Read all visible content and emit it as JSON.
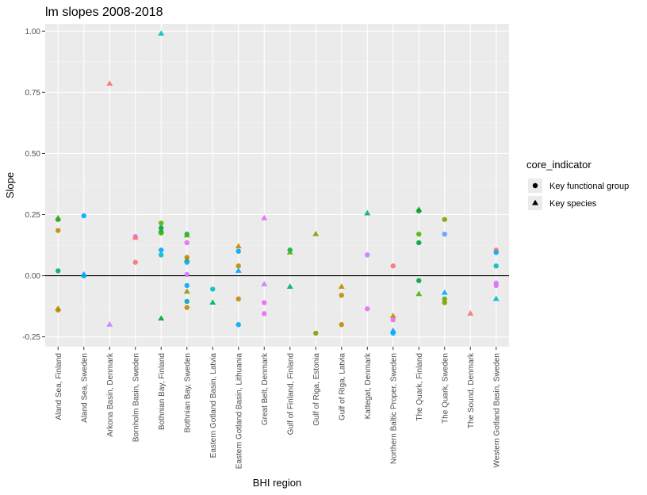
{
  "chart_data": {
    "type": "scatter",
    "title": "lm slopes 2008-2018",
    "xlabel": "BHI region",
    "ylabel": "Slope",
    "ylim": [
      -0.29,
      1.03
    ],
    "yticks": [
      -0.25,
      0.0,
      0.25,
      0.5,
      0.75,
      1.0
    ],
    "ytick_labels": [
      "-0.25",
      "0.00",
      "0.25",
      "0.50",
      "0.75",
      "1.00"
    ],
    "hline": 0,
    "grid": true,
    "categories": [
      "Aland Sea, Finland",
      "Aland Sea, Sweden",
      "Arkona Basin, Denmark",
      "Bornholm Basin, Sweden",
      "Bothnian Bay, Finland",
      "Bothnian Bay, Sweden",
      "Eastern Gotland Basin, Latvia",
      "Eastern Gotland Basin, Lithuania",
      "Great Belt, Denmark",
      "Gulf of Finland, Finland",
      "Gulf of Riga, Estonia",
      "Gulf of Riga, Latvia",
      "Kattegat, Denmark",
      "Northern Baltic Proper, Sweden",
      "The Quark, Finland",
      "The Quark, Sweden",
      "The Sound, Denmark",
      "Western Gotland Basin, Sweden"
    ],
    "legend": {
      "title": "core_indicator",
      "position": "right",
      "entries": [
        {
          "label": "Key functional group",
          "shape": "circle"
        },
        {
          "label": "Key species",
          "shape": "triangle"
        }
      ]
    },
    "points": [
      {
        "x": "Aland Sea, Finland",
        "y": 0.23,
        "shape": "circle",
        "color": "#00a33a"
      },
      {
        "x": "Aland Sea, Finland",
        "y": 0.235,
        "shape": "triangle",
        "color": "#3fae00"
      },
      {
        "x": "Aland Sea, Finland",
        "y": 0.185,
        "shape": "circle",
        "color": "#c08b00"
      },
      {
        "x": "Aland Sea, Finland",
        "y": 0.02,
        "shape": "circle",
        "color": "#00b060"
      },
      {
        "x": "Aland Sea, Finland",
        "y": -0.135,
        "shape": "triangle",
        "color": "#8a9a00"
      },
      {
        "x": "Aland Sea, Finland",
        "y": -0.14,
        "shape": "circle",
        "color": "#c08b00"
      },
      {
        "x": "Aland Sea, Sweden",
        "y": 0.245,
        "shape": "circle",
        "color": "#00a9ff"
      },
      {
        "x": "Aland Sea, Sweden",
        "y": 0.0,
        "shape": "circle",
        "color": "#00a5c7"
      },
      {
        "x": "Aland Sea, Sweden",
        "y": 0.005,
        "shape": "triangle",
        "color": "#00a9ff"
      },
      {
        "x": "Arkona Basin, Denmark",
        "y": 0.785,
        "shape": "triangle",
        "color": "#f8766d"
      },
      {
        "x": "Arkona Basin, Denmark",
        "y": -0.2,
        "shape": "triangle",
        "color": "#c77cff"
      },
      {
        "x": "Bornholm Basin, Sweden",
        "y": 0.16,
        "shape": "circle",
        "color": "#e76bf3"
      },
      {
        "x": "Bornholm Basin, Sweden",
        "y": 0.155,
        "shape": "triangle",
        "color": "#f8766d"
      },
      {
        "x": "Bornholm Basin, Sweden",
        "y": 0.055,
        "shape": "circle",
        "color": "#f8766d"
      },
      {
        "x": "Bothnian Bay, Finland",
        "y": 0.99,
        "shape": "triangle",
        "color": "#00bfc4"
      },
      {
        "x": "Bothnian Bay, Finland",
        "y": 0.215,
        "shape": "circle",
        "color": "#53b400"
      },
      {
        "x": "Bothnian Bay, Finland",
        "y": 0.195,
        "shape": "circle",
        "color": "#00a33a"
      },
      {
        "x": "Bothnian Bay, Finland",
        "y": 0.185,
        "shape": "triangle",
        "color": "#00b060"
      },
      {
        "x": "Bothnian Bay, Finland",
        "y": 0.175,
        "shape": "circle",
        "color": "#3fae00"
      },
      {
        "x": "Bothnian Bay, Finland",
        "y": 0.105,
        "shape": "circle",
        "color": "#00a9ff"
      },
      {
        "x": "Bothnian Bay, Finland",
        "y": 0.085,
        "shape": "circle",
        "color": "#00bfc4"
      },
      {
        "x": "Bothnian Bay, Finland",
        "y": -0.175,
        "shape": "triangle",
        "color": "#00a33a"
      },
      {
        "x": "Bothnian Bay, Sweden",
        "y": 0.17,
        "shape": "circle",
        "color": "#00b060"
      },
      {
        "x": "Bothnian Bay, Sweden",
        "y": 0.165,
        "shape": "triangle",
        "color": "#53b400"
      },
      {
        "x": "Bothnian Bay, Sweden",
        "y": 0.135,
        "shape": "circle",
        "color": "#e76bf3"
      },
      {
        "x": "Bothnian Bay, Sweden",
        "y": 0.075,
        "shape": "circle",
        "color": "#c08b00"
      },
      {
        "x": "Bothnian Bay, Sweden",
        "y": 0.065,
        "shape": "triangle",
        "color": "#8a9a00"
      },
      {
        "x": "Bothnian Bay, Sweden",
        "y": 0.055,
        "shape": "circle",
        "color": "#00a9ff"
      },
      {
        "x": "Bothnian Bay, Sweden",
        "y": 0.005,
        "shape": "circle",
        "color": "#c77cff"
      },
      {
        "x": "Bothnian Bay, Sweden",
        "y": -0.04,
        "shape": "circle",
        "color": "#00a9ff"
      },
      {
        "x": "Bothnian Bay, Sweden",
        "y": -0.065,
        "shape": "triangle",
        "color": "#8a9a00"
      },
      {
        "x": "Bothnian Bay, Sweden",
        "y": -0.105,
        "shape": "circle",
        "color": "#00a5c7"
      },
      {
        "x": "Bothnian Bay, Sweden",
        "y": -0.13,
        "shape": "circle",
        "color": "#c08b00"
      },
      {
        "x": "Eastern Gotland Basin, Latvia",
        "y": -0.055,
        "shape": "circle",
        "color": "#00bfc4"
      },
      {
        "x": "Eastern Gotland Basin, Latvia",
        "y": -0.11,
        "shape": "triangle",
        "color": "#00b060"
      },
      {
        "x": "Eastern Gotland Basin, Lithuania",
        "y": 0.12,
        "shape": "triangle",
        "color": "#c08b00"
      },
      {
        "x": "Eastern Gotland Basin, Lithuania",
        "y": 0.1,
        "shape": "circle",
        "color": "#00a9ff"
      },
      {
        "x": "Eastern Gotland Basin, Lithuania",
        "y": 0.04,
        "shape": "circle",
        "color": "#c08b00"
      },
      {
        "x": "Eastern Gotland Basin, Lithuania",
        "y": 0.02,
        "shape": "triangle",
        "color": "#00a9ff"
      },
      {
        "x": "Eastern Gotland Basin, Lithuania",
        "y": -0.095,
        "shape": "circle",
        "color": "#c08b00"
      },
      {
        "x": "Eastern Gotland Basin, Lithuania",
        "y": -0.2,
        "shape": "circle",
        "color": "#00a9ff"
      },
      {
        "x": "Great Belt, Denmark",
        "y": 0.235,
        "shape": "triangle",
        "color": "#e76bf3"
      },
      {
        "x": "Great Belt, Denmark",
        "y": -0.035,
        "shape": "triangle",
        "color": "#c77cff"
      },
      {
        "x": "Great Belt, Denmark",
        "y": -0.11,
        "shape": "circle",
        "color": "#e76bf3"
      },
      {
        "x": "Great Belt, Denmark",
        "y": -0.155,
        "shape": "circle",
        "color": "#e76bf3"
      },
      {
        "x": "Gulf of Finland, Finland",
        "y": 0.105,
        "shape": "circle",
        "color": "#00b060"
      },
      {
        "x": "Gulf of Finland, Finland",
        "y": 0.095,
        "shape": "triangle",
        "color": "#53b400"
      },
      {
        "x": "Gulf of Finland, Finland",
        "y": -0.045,
        "shape": "triangle",
        "color": "#00b060"
      },
      {
        "x": "Gulf of Riga, Estonia",
        "y": 0.17,
        "shape": "triangle",
        "color": "#8a9a00"
      },
      {
        "x": "Gulf of Riga, Estonia",
        "y": -0.235,
        "shape": "circle",
        "color": "#8a9a00"
      },
      {
        "x": "Gulf of Riga, Latvia",
        "y": -0.045,
        "shape": "triangle",
        "color": "#c08b00"
      },
      {
        "x": "Gulf of Riga, Latvia",
        "y": -0.08,
        "shape": "circle",
        "color": "#c08b00"
      },
      {
        "x": "Gulf of Riga, Latvia",
        "y": -0.2,
        "shape": "circle",
        "color": "#c08b00"
      },
      {
        "x": "Kattegat, Denmark",
        "y": 0.255,
        "shape": "triangle",
        "color": "#00b060"
      },
      {
        "x": "Kattegat, Denmark",
        "y": 0.085,
        "shape": "circle",
        "color": "#c77cff"
      },
      {
        "x": "Kattegat, Denmark",
        "y": -0.135,
        "shape": "circle",
        "color": "#e76bf3"
      },
      {
        "x": "Northern Baltic Proper, Sweden",
        "y": 0.04,
        "shape": "circle",
        "color": "#f8766d"
      },
      {
        "x": "Northern Baltic Proper, Sweden",
        "y": -0.165,
        "shape": "triangle",
        "color": "#c08b00"
      },
      {
        "x": "Northern Baltic Proper, Sweden",
        "y": -0.18,
        "shape": "circle",
        "color": "#e76bf3"
      },
      {
        "x": "Northern Baltic Proper, Sweden",
        "y": -0.225,
        "shape": "triangle",
        "color": "#00a9ff"
      },
      {
        "x": "Northern Baltic Proper, Sweden",
        "y": -0.235,
        "shape": "circle",
        "color": "#00a9ff"
      },
      {
        "x": "The Quark, Finland",
        "y": 0.27,
        "shape": "triangle",
        "color": "#3fae00"
      },
      {
        "x": "The Quark, Finland",
        "y": 0.265,
        "shape": "circle",
        "color": "#00a33a"
      },
      {
        "x": "The Quark, Finland",
        "y": 0.17,
        "shape": "circle",
        "color": "#53b400"
      },
      {
        "x": "The Quark, Finland",
        "y": 0.135,
        "shape": "circle",
        "color": "#00a33a"
      },
      {
        "x": "The Quark, Finland",
        "y": -0.02,
        "shape": "circle",
        "color": "#00a33a"
      },
      {
        "x": "The Quark, Finland",
        "y": -0.075,
        "shape": "triangle",
        "color": "#53b400"
      },
      {
        "x": "The Quark, Sweden",
        "y": 0.23,
        "shape": "circle",
        "color": "#8a9a00"
      },
      {
        "x": "The Quark, Sweden",
        "y": 0.17,
        "shape": "circle",
        "color": "#619cff"
      },
      {
        "x": "The Quark, Sweden",
        "y": -0.07,
        "shape": "triangle",
        "color": "#00a9ff"
      },
      {
        "x": "The Quark, Sweden",
        "y": -0.095,
        "shape": "circle",
        "color": "#53b400"
      },
      {
        "x": "The Quark, Sweden",
        "y": -0.11,
        "shape": "circle",
        "color": "#8a9a00"
      },
      {
        "x": "The Sound, Denmark",
        "y": -0.155,
        "shape": "triangle",
        "color": "#f8766d"
      },
      {
        "x": "Western Gotland Basin, Sweden",
        "y": 0.105,
        "shape": "circle",
        "color": "#f8766d"
      },
      {
        "x": "Western Gotland Basin, Sweden",
        "y": 0.095,
        "shape": "circle",
        "color": "#00a9ff"
      },
      {
        "x": "Western Gotland Basin, Sweden",
        "y": 0.04,
        "shape": "circle",
        "color": "#00bfc4"
      },
      {
        "x": "Western Gotland Basin, Sweden",
        "y": -0.03,
        "shape": "circle",
        "color": "#c77cff"
      },
      {
        "x": "Western Gotland Basin, Sweden",
        "y": -0.04,
        "shape": "circle",
        "color": "#e76bf3"
      },
      {
        "x": "Western Gotland Basin, Sweden",
        "y": -0.095,
        "shape": "triangle",
        "color": "#00bfc4"
      }
    ]
  }
}
